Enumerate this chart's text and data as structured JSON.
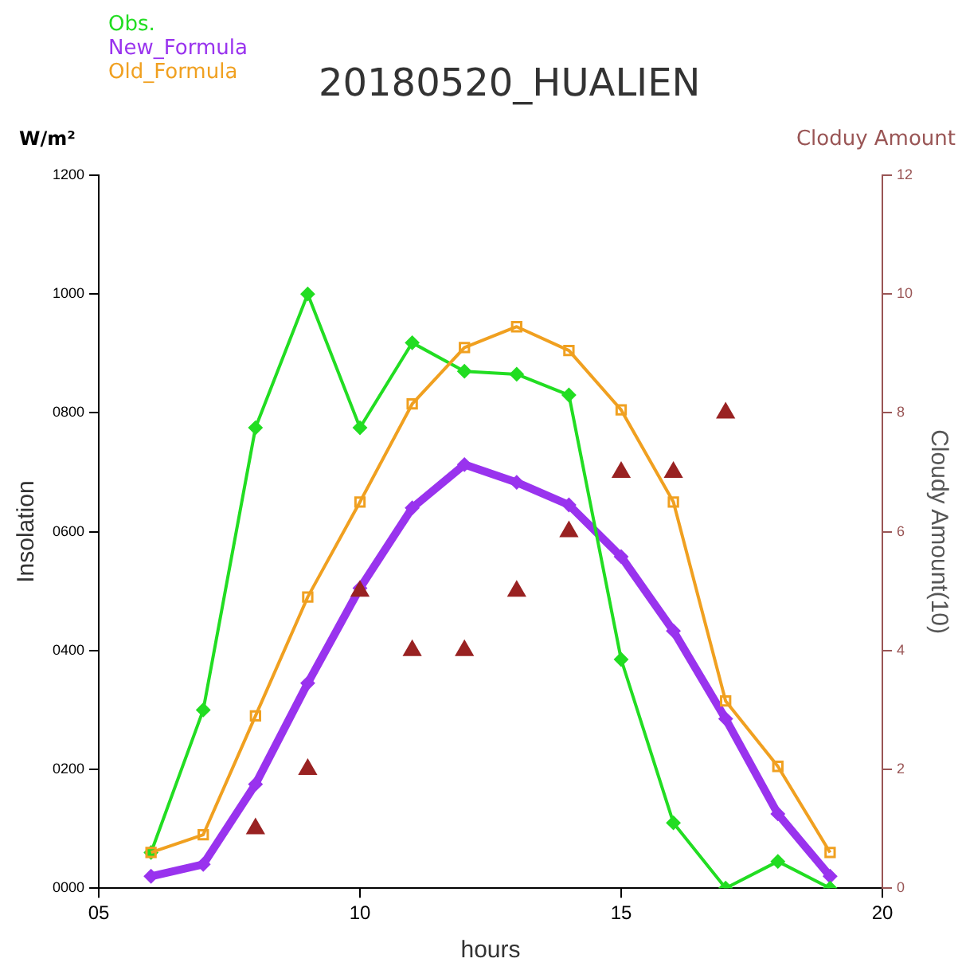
{
  "chart_data": {
    "type": "line",
    "title": "20180520_HUALIEN",
    "xlabel": "hours",
    "ylabel": "Insolation",
    "y2label": "Cloudy Amount(10)",
    "annotations": [
      "W/m²",
      "Cloduy Amount"
    ],
    "legend": "top left",
    "grid": false,
    "xlim": [
      5,
      20
    ],
    "xticks": [
      {
        "value": 5,
        "label": "05"
      },
      10,
      15,
      20
    ],
    "ylim": [
      0,
      1200
    ],
    "yticks": [
      {
        "value": 0,
        "label": "0000"
      },
      {
        "value": 200,
        "label": "0200"
      },
      {
        "value": 400,
        "label": "0400"
      },
      {
        "value": 600,
        "label": "0600"
      },
      {
        "value": 800,
        "label": "0800"
      },
      1000,
      1200
    ],
    "y2lim": [
      0,
      12
    ],
    "y2ticks": [
      0,
      2,
      4,
      6,
      8,
      10,
      12
    ],
    "series": [
      {
        "name": "Obs.",
        "color": "#22dd22",
        "marker": "diamond",
        "x": [
          6,
          7,
          8,
          9,
          10,
          11,
          12,
          13,
          14,
          15,
          16,
          17,
          18,
          19
        ],
        "values": [
          60,
          300,
          775,
          1000,
          775,
          918,
          870,
          865,
          830,
          385,
          110,
          0,
          45,
          0
        ]
      },
      {
        "name": "New_Formula",
        "color": "#9933ee",
        "marker": "diamond",
        "x": [
          6,
          7,
          8,
          9,
          10,
          11,
          12,
          13,
          14,
          15,
          16,
          17,
          18,
          19
        ],
        "values": [
          20,
          40,
          175,
          345,
          505,
          640,
          713,
          683,
          645,
          558,
          433,
          285,
          125,
          20
        ]
      },
      {
        "name": "Old_Formula",
        "color": "#f0a020",
        "marker": "square",
        "x": [
          6,
          7,
          8,
          9,
          10,
          11,
          12,
          13,
          14,
          15,
          16,
          17,
          18,
          19
        ],
        "values": [
          60,
          90,
          290,
          490,
          650,
          815,
          910,
          945,
          905,
          805,
          650,
          315,
          205,
          60
        ]
      },
      {
        "type": "scatter",
        "axis": "y2",
        "color": "#992222",
        "marker": "triangle",
        "x": [
          8,
          9,
          10,
          11,
          12,
          13,
          14,
          15,
          16,
          17
        ],
        "values": [
          1,
          2,
          5,
          4,
          4,
          5,
          6,
          7,
          7,
          8
        ]
      }
    ]
  }
}
